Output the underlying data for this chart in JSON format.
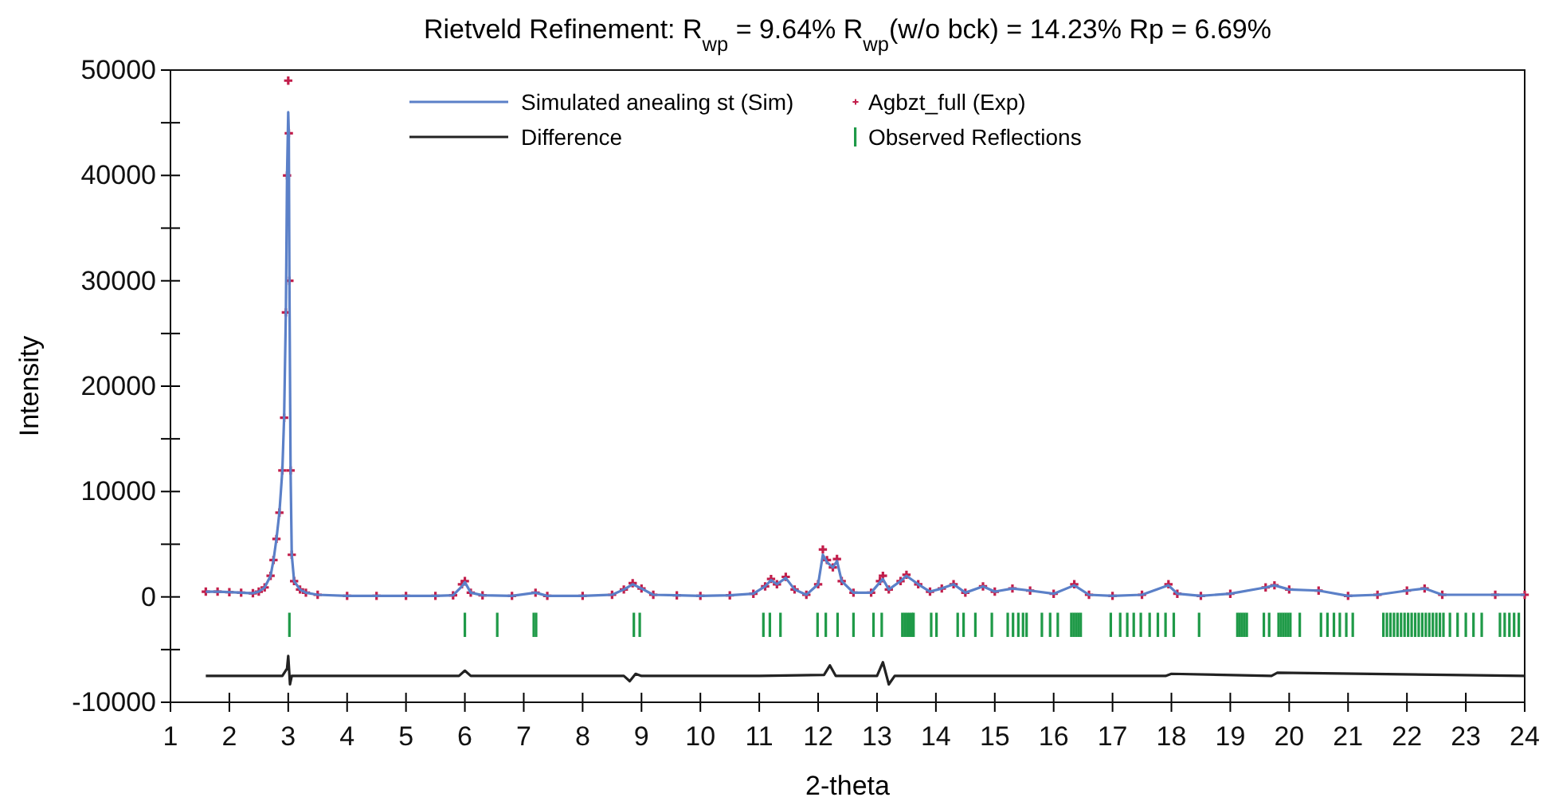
{
  "chart_data": {
    "type": "line",
    "title": "Rietveld Refinement: R$_{wp}$ = 9.64% R$_{wp}$(w/o bck) = 14.23% Rp = 6.69%",
    "xlabel": "2-theta",
    "ylabel": "Intensity",
    "xlim": [
      1,
      24
    ],
    "xticks": [
      1,
      2,
      3,
      4,
      5,
      6,
      7,
      8,
      9,
      10,
      11,
      12,
      13,
      14,
      15,
      16,
      17,
      18,
      19,
      20,
      21,
      22,
      23,
      24
    ],
    "ylim": [
      -10000,
      50000
    ],
    "yticks": [
      -10000,
      {
        "value": -5000,
        "label": null
      },
      0,
      {
        "value": 5000,
        "label": null
      },
      10000,
      {
        "value": 15000,
        "label": null
      },
      20000,
      {
        "value": 25000,
        "label": null
      },
      30000,
      {
        "value": 35000,
        "label": null
      },
      40000,
      {
        "value": 45000,
        "label": null
      },
      50000
    ],
    "grid": false,
    "legend": "top",
    "line_style": "solid",
    "series": [
      {
        "name": "Simulated anealing st (Sim)",
        "color": "#5b80c8",
        "x": [
          1.6,
          1.8,
          2.0,
          2.2,
          2.4,
          2.5,
          2.6,
          2.7,
          2.75,
          2.8,
          2.85,
          2.9,
          2.93,
          2.96,
          2.98,
          3.0,
          3.01,
          3.02,
          3.04,
          3.06,
          3.1,
          3.2,
          3.3,
          3.5,
          4.0,
          4.5,
          5.0,
          5.5,
          5.8,
          5.95,
          6.0,
          6.1,
          6.3,
          6.8,
          7.2,
          7.4,
          8.0,
          8.5,
          8.7,
          8.85,
          9.0,
          9.2,
          9.6,
          10.0,
          10.5,
          10.9,
          11.1,
          11.2,
          11.3,
          11.45,
          11.6,
          11.8,
          12.0,
          12.08,
          12.15,
          12.25,
          12.32,
          12.4,
          12.6,
          12.9,
          13.05,
          13.1,
          13.2,
          13.4,
          13.5,
          13.7,
          13.9,
          14.1,
          14.3,
          14.5,
          14.8,
          15.0,
          15.3,
          15.6,
          16.0,
          16.35,
          16.6,
          17.0,
          17.5,
          17.95,
          18.1,
          18.5,
          19.0,
          19.6,
          19.75,
          20.0,
          20.5,
          21.0,
          21.5,
          22.0,
          22.3,
          22.6,
          23.5,
          24.0
        ],
        "values": [
          500,
          500,
          450,
          400,
          350,
          500,
          900,
          2000,
          3500,
          5500,
          8000,
          12000,
          17000,
          27000,
          40000,
          46000,
          44000,
          30000,
          12000,
          4000,
          1500,
          700,
          400,
          200,
          100,
          100,
          100,
          100,
          150,
          1000,
          1400,
          400,
          150,
          100,
          400,
          100,
          100,
          200,
          700,
          1200,
          800,
          200,
          150,
          100,
          150,
          300,
          1000,
          1600,
          1200,
          1800,
          700,
          200,
          1200,
          4000,
          3300,
          2800,
          3400,
          1500,
          400,
          400,
          1400,
          1700,
          700,
          1500,
          2000,
          1200,
          500,
          800,
          1200,
          400,
          1000,
          500,
          800,
          600,
          300,
          1100,
          200,
          100,
          200,
          1100,
          300,
          100,
          300,
          900,
          1100,
          700,
          600,
          100,
          200,
          600,
          800,
          200,
          200,
          200
        ]
      },
      {
        "name": "Agbzt_full (Exp)",
        "type": "scatter",
        "marker": "cross",
        "color": "#c21e4b",
        "x": [
          1.6,
          1.8,
          2.0,
          2.2,
          2.4,
          2.5,
          2.6,
          2.7,
          2.75,
          2.8,
          2.85,
          2.9,
          2.93,
          2.96,
          2.98,
          3.0,
          3.01,
          3.02,
          3.04,
          3.06,
          3.1,
          3.2,
          3.3,
          3.5,
          4.0,
          4.5,
          5.0,
          5.5,
          5.8,
          5.95,
          6.0,
          6.1,
          6.3,
          6.8,
          7.2,
          7.4,
          8.0,
          8.5,
          8.7,
          8.85,
          9.0,
          9.2,
          9.6,
          10.0,
          10.5,
          10.9,
          11.1,
          11.2,
          11.3,
          11.45,
          11.6,
          11.8,
          12.0,
          12.08,
          12.15,
          12.25,
          12.32,
          12.4,
          12.6,
          12.9,
          13.05,
          13.1,
          13.2,
          13.4,
          13.5,
          13.7,
          13.9,
          14.1,
          14.3,
          14.5,
          14.8,
          15.0,
          15.3,
          15.6,
          16.0,
          16.35,
          16.6,
          17.0,
          17.5,
          17.95,
          18.1,
          18.5,
          19.0,
          19.6,
          19.75,
          20.0,
          20.5,
          21.0,
          21.5,
          22.0,
          22.3,
          22.6,
          23.5,
          24.0
        ],
        "values": [
          500,
          500,
          450,
          400,
          350,
          500,
          900,
          2000,
          3500,
          5500,
          8000,
          12000,
          17000,
          27000,
          40000,
          49000,
          44000,
          30000,
          12000,
          4000,
          1500,
          700,
          400,
          200,
          100,
          100,
          100,
          100,
          150,
          1200,
          1500,
          400,
          150,
          100,
          400,
          100,
          100,
          200,
          700,
          1300,
          800,
          200,
          150,
          100,
          150,
          300,
          1000,
          1700,
          1200,
          1900,
          700,
          200,
          1200,
          4500,
          3500,
          2800,
          3600,
          1500,
          400,
          400,
          1500,
          2000,
          700,
          1500,
          2100,
          1200,
          500,
          800,
          1200,
          400,
          1000,
          500,
          800,
          600,
          300,
          1200,
          200,
          100,
          200,
          1200,
          300,
          100,
          300,
          900,
          1100,
          700,
          600,
          100,
          200,
          600,
          800,
          200,
          200,
          200
        ]
      },
      {
        "name": "Difference",
        "type": "line",
        "color": "#222222",
        "x": [
          1.6,
          2.9,
          2.98,
          3.0,
          3.03,
          3.06,
          3.2,
          5.9,
          6.0,
          6.1,
          8.7,
          8.8,
          8.9,
          9.0,
          11.0,
          12.1,
          12.2,
          12.3,
          13.0,
          13.1,
          13.2,
          13.3,
          14.0,
          17.9,
          18.0,
          19.7,
          19.8,
          24.0
        ],
        "values": [
          -7500,
          -7500,
          -6800,
          -5600,
          -8300,
          -7500,
          -7500,
          -7500,
          -7000,
          -7500,
          -7500,
          -8000,
          -7300,
          -7500,
          -7500,
          -7400,
          -6500,
          -7500,
          -7500,
          -6200,
          -8300,
          -7500,
          -7500,
          -7500,
          -7300,
          -7500,
          -7200,
          -7500
        ]
      },
      {
        "name": "Observed Reflections",
        "type": "bar",
        "color": "#1f9a48",
        "x": [
          3.02,
          6.0,
          6.55,
          7.17,
          7.21,
          8.87,
          8.97,
          11.07,
          11.18,
          11.36,
          11.99,
          12.13,
          12.33,
          12.6,
          12.94,
          13.08,
          13.43,
          13.47,
          13.51,
          13.55,
          13.59,
          13.62,
          13.92,
          14.01,
          14.37,
          14.47,
          14.67,
          14.95,
          15.22,
          15.31,
          15.4,
          15.48,
          15.54,
          15.8,
          15.94,
          16.07,
          16.3,
          16.34,
          16.38,
          16.42,
          16.46,
          16.97,
          17.13,
          17.25,
          17.36,
          17.48,
          17.63,
          17.77,
          17.9,
          18.04,
          18.47,
          19.12,
          19.16,
          19.2,
          19.24,
          19.28,
          19.57,
          19.66,
          19.82,
          19.86,
          19.9,
          19.94,
          19.98,
          20.02,
          20.18,
          20.54,
          20.65,
          20.76,
          20.86,
          20.97,
          21.08,
          21.6,
          21.66,
          21.72,
          21.78,
          21.84,
          21.9,
          21.96,
          22.02,
          22.08,
          22.14,
          22.2,
          22.26,
          22.32,
          22.38,
          22.44,
          22.5,
          22.56,
          22.62,
          22.73,
          22.86,
          23.0,
          23.13,
          23.27,
          23.58,
          23.66,
          23.74,
          23.82,
          23.9
        ],
        "base": [
          -3800,
          -3800,
          -3800,
          -3800,
          -3800,
          -3800,
          -3800,
          -3800,
          -3800,
          -3800,
          -3800,
          -3800,
          -3800,
          -3800,
          -3800,
          -3800,
          -3800,
          -3800,
          -3800,
          -3800,
          -3800,
          -3800,
          -3800,
          -3800,
          -3800,
          -3800,
          -3800,
          -3800,
          -3800,
          -3800,
          -3800,
          -3800,
          -3800,
          -3800,
          -3800,
          -3800,
          -3800,
          -3800,
          -3800,
          -3800,
          -3800,
          -3800,
          -3800,
          -3800,
          -3800,
          -3800,
          -3800,
          -3800,
          -3800,
          -3800,
          -3800,
          -3800,
          -3800,
          -3800,
          -3800,
          -3800,
          -3800,
          -3800,
          -3800,
          -3800,
          -3800,
          -3800,
          -3800,
          -3800,
          -3800,
          -3800,
          -3800,
          -3800,
          -3800,
          -3800,
          -3800,
          -3800,
          -3800,
          -3800,
          -3800,
          -3800,
          -3800,
          -3800,
          -3800,
          -3800,
          -3800,
          -3800,
          -3800,
          -3800,
          -3800,
          -3800,
          -3800,
          -3800,
          -3800,
          -3800,
          -3800,
          -3800,
          -3800,
          -3800,
          -3800,
          -3800,
          -3800,
          -3800,
          -3800
        ],
        "values": [
          2300,
          2300,
          2300,
          2300,
          2300,
          2300,
          2300,
          2300,
          2300,
          2300,
          2300,
          2300,
          2300,
          2300,
          2300,
          2300,
          2300,
          2300,
          2300,
          2300,
          2300,
          2300,
          2300,
          2300,
          2300,
          2300,
          2300,
          2300,
          2300,
          2300,
          2300,
          2300,
          2300,
          2300,
          2300,
          2300,
          2300,
          2300,
          2300,
          2300,
          2300,
          2300,
          2300,
          2300,
          2300,
          2300,
          2300,
          2300,
          2300,
          2300,
          2300,
          2300,
          2300,
          2300,
          2300,
          2300,
          2300,
          2300,
          2300,
          2300,
          2300,
          2300,
          2300,
          2300,
          2300,
          2300,
          2300,
          2300,
          2300,
          2300,
          2300,
          2300,
          2300,
          2300,
          2300,
          2300,
          2300,
          2300,
          2300,
          2300,
          2300,
          2300,
          2300,
          2300,
          2300,
          2300,
          2300,
          2300,
          2300,
          2300,
          2300,
          2300,
          2300,
          2300,
          2300,
          2300,
          2300,
          2300,
          2300
        ]
      }
    ]
  }
}
